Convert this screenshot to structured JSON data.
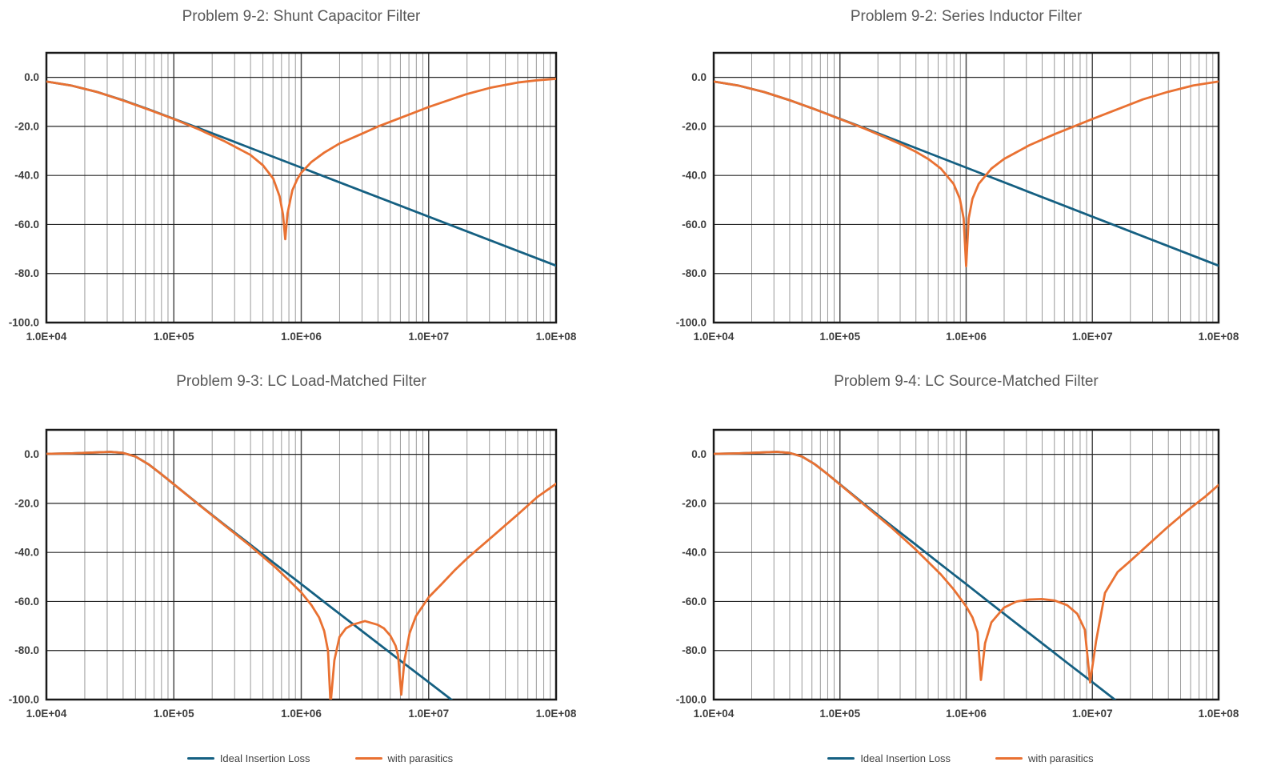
{
  "colors": {
    "ideal_series": "#156082",
    "parasitic_series": "#E97132",
    "title_text": "#595959",
    "tick_text": "#3f3f3f",
    "legend_text": "#404040",
    "grid_minor": "#9a9a9a",
    "grid_decade": "#4c4c4c",
    "grid_horizontal": "#262626",
    "plot_border": "#1a1a1a",
    "background": "#ffffff"
  },
  "axes": {
    "x_scale": "log",
    "x_tick_labels": [
      "1.0E+04",
      "1.0E+05",
      "1.0E+06",
      "1.0E+07",
      "1.0E+08"
    ],
    "x_log_min": 4,
    "x_log_max": 8,
    "y_tick_labels": [
      "0.0",
      "-20.0",
      "-40.0",
      "-60.0",
      "-80.0",
      "-100.0"
    ],
    "y_tick_values": [
      0,
      -20,
      -40,
      -60,
      -80,
      -100
    ],
    "y_min": -100,
    "y_max": 10,
    "y_major_step": 20,
    "grid": "major horizontal + decade and log-minor vertical"
  },
  "legend": {
    "items": [
      {
        "name": "ideal",
        "label": "Ideal Insertion Loss",
        "color": "#156082"
      },
      {
        "name": "parasitics",
        "label": "with parasitics",
        "color": "#E97132"
      }
    ],
    "position": "below bottom charts"
  },
  "chart_data": [
    {
      "type": "line",
      "title": "Problem 9-2: Shunt Capacitor Filter",
      "x_scale": "log",
      "x_range": [
        10000,
        100000000
      ],
      "ylim": [
        -100,
        10
      ],
      "y_unit": "dB",
      "series": [
        {
          "name": "Ideal Insertion Loss",
          "color": "#156082",
          "points_logf_db": [
            [
              4.0,
              -1.7
            ],
            [
              4.2,
              -3.4
            ],
            [
              4.4,
              -6.0
            ],
            [
              4.6,
              -9.3
            ],
            [
              4.8,
              -13.0
            ],
            [
              5.0,
              -16.9
            ],
            [
              5.2,
              -20.8
            ],
            [
              5.4,
              -24.8
            ],
            [
              5.6,
              -28.8
            ],
            [
              5.8,
              -32.8
            ],
            [
              6.0,
              -36.8
            ],
            [
              6.5,
              -46.8
            ],
            [
              7.0,
              -56.8
            ],
            [
              7.5,
              -66.8
            ],
            [
              8.0,
              -76.8
            ]
          ]
        },
        {
          "name": "with parasitics",
          "color": "#E97132",
          "points_logf_db": [
            [
              4.0,
              -1.7
            ],
            [
              4.2,
              -3.4
            ],
            [
              4.4,
              -6.0
            ],
            [
              4.6,
              -9.4
            ],
            [
              4.8,
              -13.1
            ],
            [
              5.0,
              -17.0
            ],
            [
              5.2,
              -21.3
            ],
            [
              5.4,
              -26.1
            ],
            [
              5.6,
              -31.6
            ],
            [
              5.7,
              -35.9
            ],
            [
              5.78,
              -41.3
            ],
            [
              5.83,
              -48.5
            ],
            [
              5.857,
              -56.0
            ],
            [
              5.8745,
              -66.0
            ],
            [
              5.892,
              -55.6
            ],
            [
              5.93,
              -46.1
            ],
            [
              5.97,
              -41.4
            ],
            [
              6.0,
              -38.9
            ],
            [
              6.08,
              -34.5
            ],
            [
              6.18,
              -30.7
            ],
            [
              6.3,
              -27.0
            ],
            [
              6.48,
              -22.9
            ],
            [
              6.6,
              -20.1
            ],
            [
              6.7,
              -18.1
            ],
            [
              6.85,
              -15.1
            ],
            [
              7.0,
              -12.1
            ],
            [
              7.18,
              -8.9
            ],
            [
              7.3,
              -6.8
            ],
            [
              7.48,
              -4.3
            ],
            [
              7.7,
              -2.1
            ],
            [
              7.85,
              -1.2
            ],
            [
              8.0,
              -0.6
            ]
          ]
        }
      ],
      "notch": {
        "frequency_hz": 750000,
        "depth_db": -66
      }
    },
    {
      "type": "line",
      "title": "Problem 9-2: Series Inductor Filter",
      "x_scale": "log",
      "x_range": [
        10000,
        100000000
      ],
      "ylim": [
        -100,
        10
      ],
      "y_unit": "dB",
      "series": [
        {
          "name": "Ideal Insertion Loss",
          "color": "#156082",
          "points_logf_db": [
            [
              4.0,
              -1.7
            ],
            [
              4.2,
              -3.4
            ],
            [
              4.4,
              -6.0
            ],
            [
              4.6,
              -9.3
            ],
            [
              4.8,
              -13.0
            ],
            [
              5.0,
              -16.9
            ],
            [
              5.2,
              -20.8
            ],
            [
              5.4,
              -24.8
            ],
            [
              5.6,
              -28.8
            ],
            [
              5.8,
              -32.8
            ],
            [
              6.0,
              -36.8
            ],
            [
              6.5,
              -46.8
            ],
            [
              7.0,
              -56.8
            ],
            [
              7.5,
              -66.8
            ],
            [
              8.0,
              -76.8
            ]
          ]
        },
        {
          "name": "with parasitics",
          "color": "#E97132",
          "points_logf_db": [
            [
              4.0,
              -1.7
            ],
            [
              4.2,
              -3.4
            ],
            [
              4.4,
              -6.0
            ],
            [
              4.6,
              -9.3
            ],
            [
              4.8,
              -13.0
            ],
            [
              5.0,
              -17.0
            ],
            [
              5.2,
              -21.0
            ],
            [
              5.4,
              -25.4
            ],
            [
              5.5,
              -27.7
            ],
            [
              5.6,
              -30.3
            ],
            [
              5.7,
              -33.3
            ],
            [
              5.8,
              -37.2
            ],
            [
              5.9,
              -43.4
            ],
            [
              5.95,
              -49.5
            ],
            [
              5.98,
              -57.5
            ],
            [
              6.0,
              -77.0
            ],
            [
              6.02,
              -57.5
            ],
            [
              6.05,
              -49.5
            ],
            [
              6.1,
              -43.4
            ],
            [
              6.2,
              -37.2
            ],
            [
              6.3,
              -33.3
            ],
            [
              6.5,
              -27.7
            ],
            [
              6.7,
              -23.2
            ],
            [
              7.0,
              -17.0
            ],
            [
              7.2,
              -13.0
            ],
            [
              7.4,
              -9.0
            ],
            [
              7.6,
              -5.9
            ],
            [
              7.8,
              -3.3
            ],
            [
              8.0,
              -1.7
            ]
          ]
        }
      ],
      "notch": {
        "frequency_hz": 1000000,
        "depth_db": -77
      }
    },
    {
      "type": "line",
      "title": "Problem 9-3: LC Load-Matched Filter",
      "x_scale": "log",
      "x_range": [
        10000,
        100000000
      ],
      "ylim": [
        -100,
        10
      ],
      "y_unit": "dB",
      "series": [
        {
          "name": "Ideal Insertion Loss",
          "color": "#156082",
          "points_logf_db": [
            [
              4.0,
              0.2
            ],
            [
              4.2,
              0.4
            ],
            [
              4.4,
              0.8
            ],
            [
              4.5,
              1.0
            ],
            [
              4.6,
              0.6
            ],
            [
              4.7,
              -0.9
            ],
            [
              4.8,
              -4.0
            ],
            [
              4.9,
              -8.0
            ],
            [
              5.0,
              -12.2
            ],
            [
              5.1,
              -16.4
            ],
            [
              5.2,
              -20.6
            ],
            [
              5.4,
              -28.8
            ],
            [
              5.6,
              -36.8
            ],
            [
              5.8,
              -44.9
            ],
            [
              6.0,
              -52.9
            ],
            [
              6.2,
              -61.0
            ],
            [
              6.4,
              -69.0
            ],
            [
              6.6,
              -77.0
            ],
            [
              6.8,
              -85.0
            ],
            [
              7.0,
              -92.9
            ],
            [
              7.2,
              -100.9
            ],
            [
              7.25,
              -102.9
            ]
          ]
        },
        {
          "name": "with parasitics",
          "color": "#E97132",
          "points_logf_db": [
            [
              4.0,
              0.2
            ],
            [
              4.2,
              0.4
            ],
            [
              4.4,
              0.8
            ],
            [
              4.5,
              1.0
            ],
            [
              4.6,
              0.6
            ],
            [
              4.7,
              -0.9
            ],
            [
              4.8,
              -4.0
            ],
            [
              4.9,
              -8.0
            ],
            [
              5.0,
              -12.2
            ],
            [
              5.2,
              -20.7
            ],
            [
              5.4,
              -29.0
            ],
            [
              5.6,
              -37.3
            ],
            [
              5.8,
              -46.2
            ],
            [
              5.9,
              -51.2
            ],
            [
              6.0,
              -56.3
            ],
            [
              6.08,
              -61.5
            ],
            [
              6.14,
              -66.5
            ],
            [
              6.18,
              -72.0
            ],
            [
              6.21,
              -80.0
            ],
            [
              6.23,
              -102.0
            ],
            [
              6.26,
              -84.0
            ],
            [
              6.3,
              -74.5
            ],
            [
              6.35,
              -71.0
            ],
            [
              6.4,
              -69.5
            ],
            [
              6.5,
              -68.0
            ],
            [
              6.6,
              -69.5
            ],
            [
              6.65,
              -71.0
            ],
            [
              6.7,
              -74.0
            ],
            [
              6.74,
              -78.0
            ],
            [
              6.76,
              -82.0
            ],
            [
              6.785,
              -98.0
            ],
            [
              6.81,
              -84.0
            ],
            [
              6.85,
              -73.0
            ],
            [
              6.9,
              -66.0
            ],
            [
              7.0,
              -58.3
            ],
            [
              7.1,
              -53.0
            ],
            [
              7.2,
              -47.5
            ],
            [
              7.3,
              -42.5
            ],
            [
              7.4,
              -38.0
            ],
            [
              7.5,
              -33.5
            ],
            [
              7.6,
              -29.0
            ],
            [
              7.7,
              -24.5
            ],
            [
              7.85,
              -17.5
            ],
            [
              8.0,
              -12.0
            ]
          ]
        }
      ],
      "notches": [
        {
          "frequency_hz": 1700000,
          "depth_db": -102
        },
        {
          "frequency_hz": 6100000,
          "depth_db": -98
        }
      ]
    },
    {
      "type": "line",
      "title": "Problem 9-4: LC Source-Matched Filter",
      "x_scale": "log",
      "x_range": [
        10000,
        100000000
      ],
      "ylim": [
        -100,
        10
      ],
      "y_unit": "dB",
      "series": [
        {
          "name": "Ideal Insertion Loss",
          "color": "#156082",
          "points_logf_db": [
            [
              4.0,
              0.2
            ],
            [
              4.2,
              0.4
            ],
            [
              4.4,
              0.8
            ],
            [
              4.5,
              1.0
            ],
            [
              4.6,
              0.6
            ],
            [
              4.7,
              -0.9
            ],
            [
              4.8,
              -4.0
            ],
            [
              4.9,
              -8.0
            ],
            [
              5.0,
              -12.2
            ],
            [
              5.1,
              -16.4
            ],
            [
              5.2,
              -20.6
            ],
            [
              5.4,
              -28.8
            ],
            [
              5.6,
              -36.8
            ],
            [
              5.8,
              -44.9
            ],
            [
              6.0,
              -52.9
            ],
            [
              6.2,
              -61.0
            ],
            [
              6.4,
              -69.0
            ],
            [
              6.6,
              -77.0
            ],
            [
              6.8,
              -85.0
            ],
            [
              7.0,
              -92.9
            ],
            [
              7.2,
              -100.9
            ],
            [
              7.25,
              -102.9
            ]
          ]
        },
        {
          "name": "with parasitics",
          "color": "#E97132",
          "points_logf_db": [
            [
              4.0,
              0.2
            ],
            [
              4.2,
              0.4
            ],
            [
              4.4,
              0.8
            ],
            [
              4.5,
              1.0
            ],
            [
              4.6,
              0.6
            ],
            [
              4.7,
              -0.9
            ],
            [
              4.8,
              -4.0
            ],
            [
              4.9,
              -8.0
            ],
            [
              5.0,
              -12.3
            ],
            [
              5.2,
              -20.9
            ],
            [
              5.4,
              -29.5
            ],
            [
              5.6,
              -38.8
            ],
            [
              5.8,
              -49.0
            ],
            [
              5.9,
              -55.0
            ],
            [
              6.0,
              -62.0
            ],
            [
              6.05,
              -66.5
            ],
            [
              6.09,
              -72.5
            ],
            [
              6.117,
              -92.0
            ],
            [
              6.15,
              -77.0
            ],
            [
              6.2,
              -68.5
            ],
            [
              6.3,
              -62.5
            ],
            [
              6.4,
              -60.0
            ],
            [
              6.5,
              -59.2
            ],
            [
              6.6,
              -59.0
            ],
            [
              6.7,
              -59.6
            ],
            [
              6.8,
              -61.5
            ],
            [
              6.88,
              -65.0
            ],
            [
              6.94,
              -71.5
            ],
            [
              6.982,
              -93.0
            ],
            [
              7.03,
              -76.0
            ],
            [
              7.1,
              -56.5
            ],
            [
              7.2,
              -48.0
            ],
            [
              7.3,
              -43.5
            ],
            [
              7.45,
              -36.5
            ],
            [
              7.6,
              -29.5
            ],
            [
              7.75,
              -23.0
            ],
            [
              7.9,
              -17.0
            ],
            [
              8.0,
              -12.5
            ]
          ]
        }
      ],
      "notches": [
        {
          "frequency_hz": 1310000,
          "depth_db": -92
        },
        {
          "frequency_hz": 9600000,
          "depth_db": -93
        }
      ]
    }
  ]
}
